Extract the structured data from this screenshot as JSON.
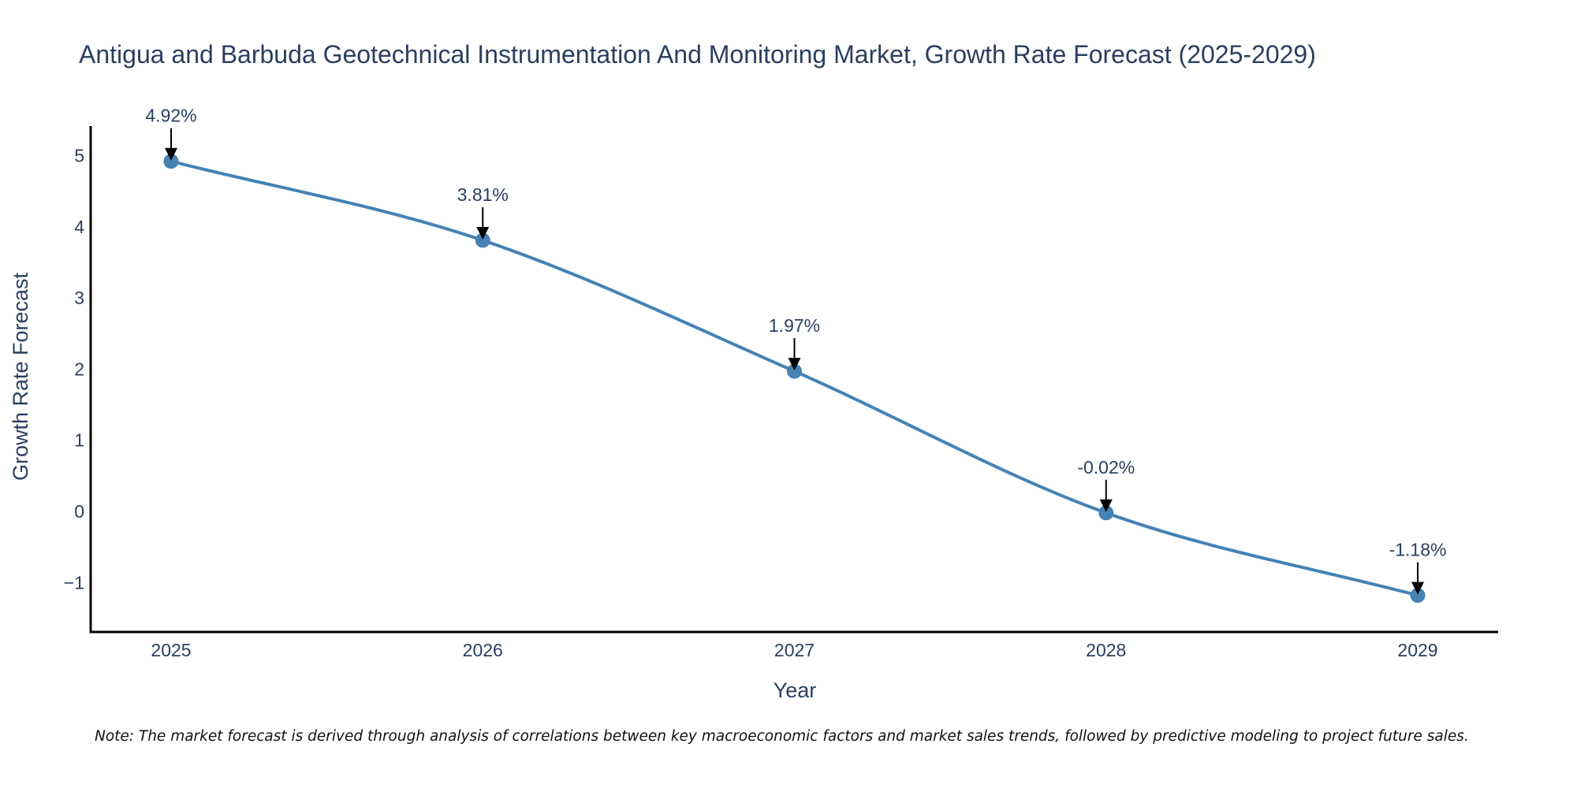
{
  "chart_data": {
    "type": "line",
    "title": "Antigua and Barbuda Geotechnical Instrumentation And Monitoring Market, Growth Rate Forecast (2025-2029)",
    "xlabel": "Year",
    "ylabel": "Growth Rate Forecast",
    "categories": [
      "2025",
      "2026",
      "2027",
      "2028",
      "2029"
    ],
    "values": [
      4.92,
      3.81,
      1.97,
      -0.02,
      -1.18
    ],
    "data_labels": [
      "4.92%",
      "3.81%",
      "1.97%",
      "-0.02%",
      "-1.18%"
    ],
    "y_ticks": [
      -1,
      0,
      1,
      2,
      3,
      4,
      5
    ],
    "y_tick_labels": [
      "−1",
      "0",
      "1",
      "2",
      "3",
      "4",
      "5"
    ],
    "ylim": [
      -1.7,
      5.4
    ],
    "grid": false,
    "line_shape": "spline",
    "colors": {
      "line": "#4682b4",
      "marker": "#4682b4",
      "arrow": "#000000",
      "axis": "#000000",
      "text": "#2a3f5f"
    }
  },
  "note": "Note: The market forecast is derived through analysis of correlations between key macroeconomic factors and market sales trends, followed by predictive modeling to project future sales."
}
